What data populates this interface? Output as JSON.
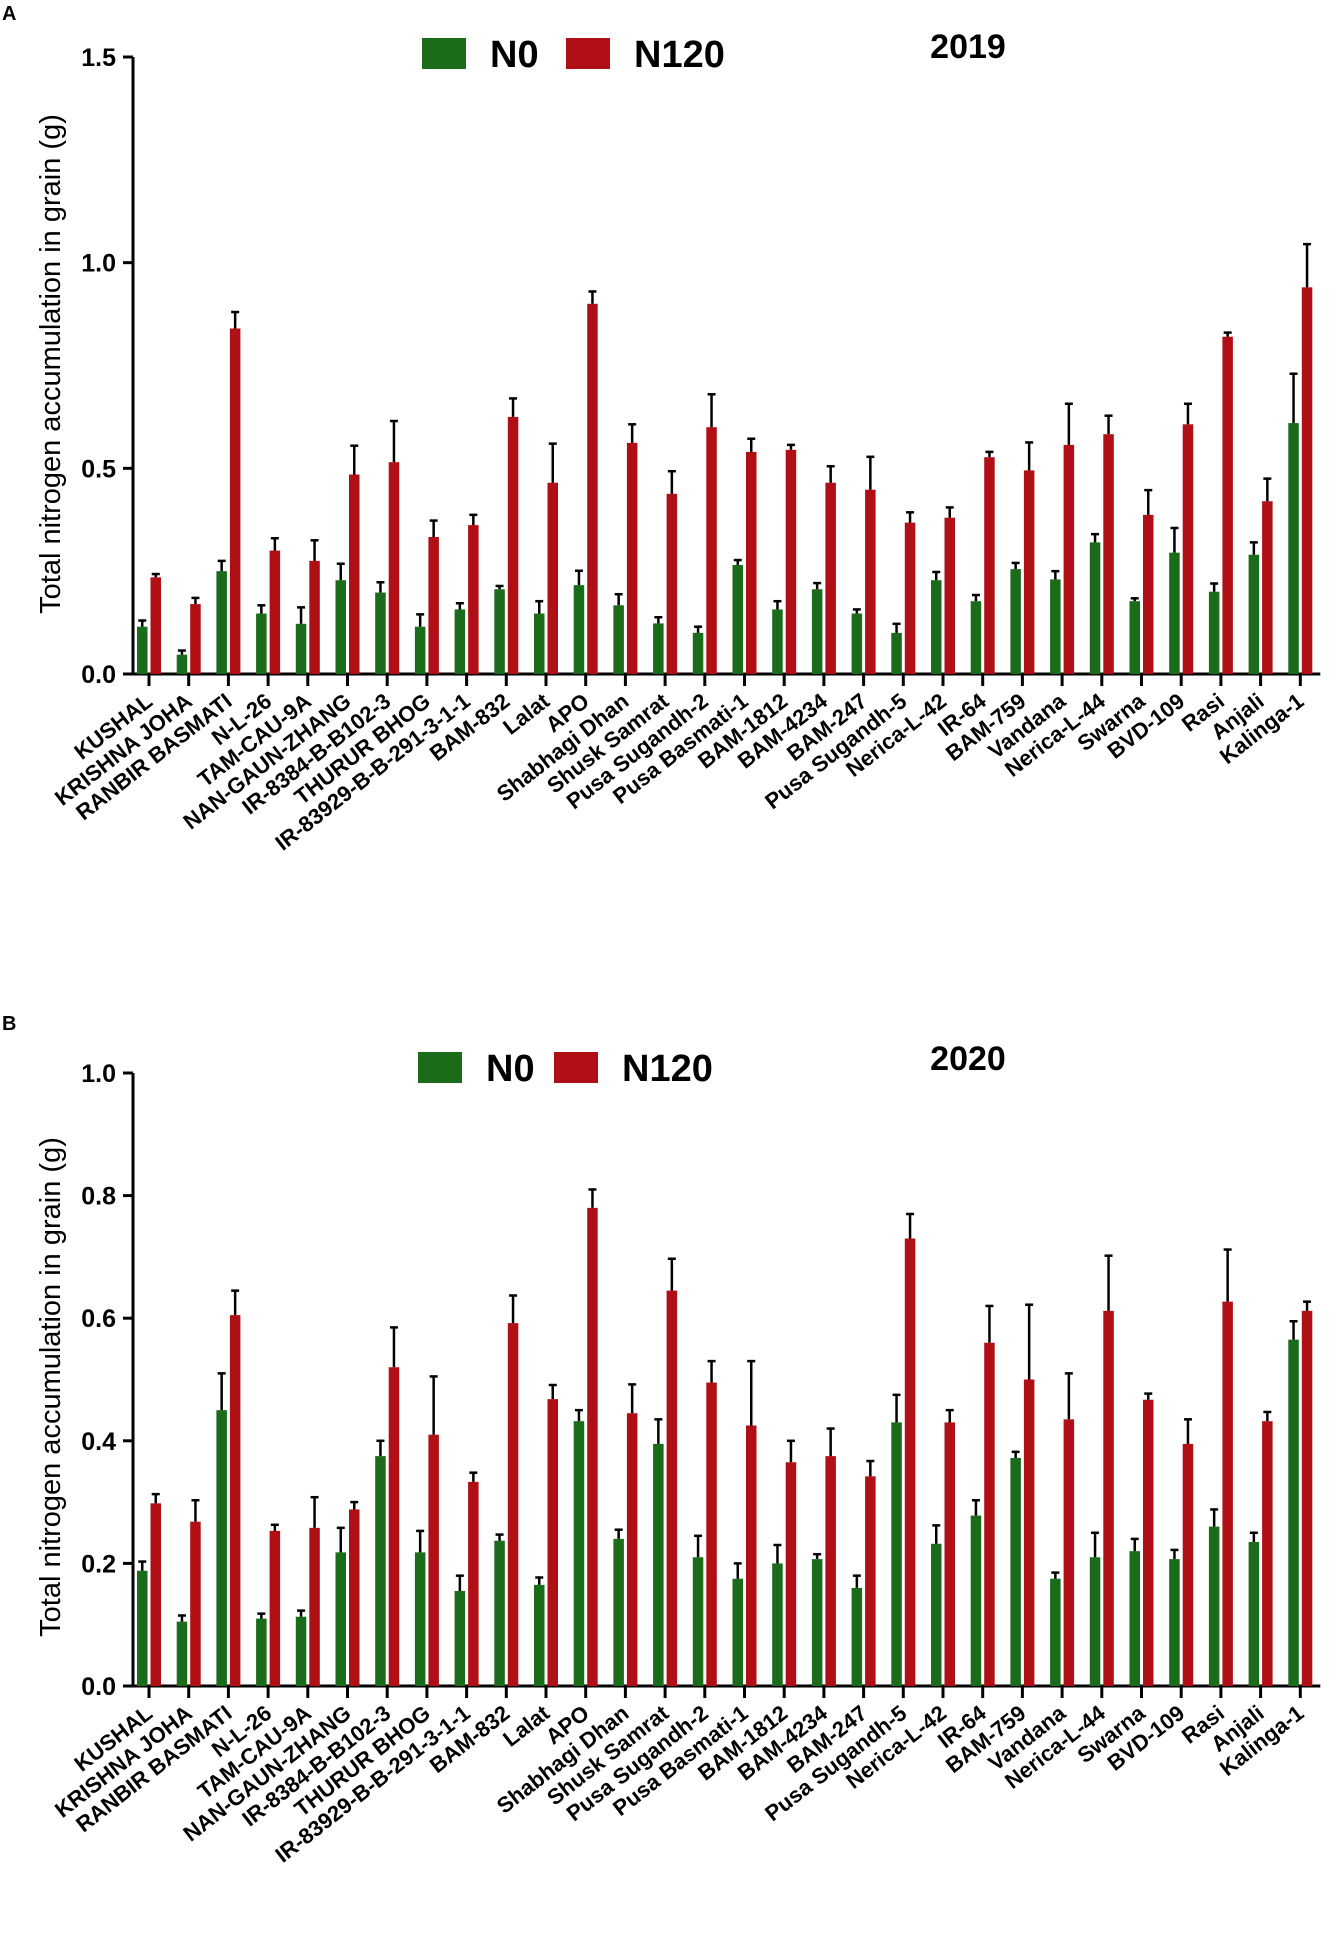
{
  "colors": {
    "n0": "#1a6b1a",
    "n120": "#b01015",
    "axis": "#000000",
    "errorbar": "#000000"
  },
  "chart_data": [
    {
      "type": "bar",
      "panel_label": "A",
      "title": "2019",
      "xlabel": "",
      "ylabel": "Total nitrogen accumulation in grain (g)",
      "ylim": [
        0,
        1.5
      ],
      "yticks": [
        "0.0",
        "0.5",
        "1.0",
        "1.5"
      ],
      "legend": [
        "N0",
        "N120"
      ],
      "legend_position": "top-center",
      "categories": [
        "KUSHAL",
        "KRISHNA JOHA",
        "RANBIR BASMATI",
        "N-L-26",
        "TAM-CAU-9A",
        "NAN-GAUN-ZHANG",
        "IR-8384-B-B102-3",
        "THURUR BHOG",
        "IR-83929-B-B-291-3-1-1",
        "BAM-832",
        "Lalat",
        "APO",
        "Shabhagi Dhan",
        "Shusk Samrat",
        "Pusa Sugandh-2",
        "Pusa Basmati-1",
        "BAM-1812",
        "BAM-4234",
        "BAM-247",
        "Pusa Sugandh-5",
        "Nerica-L-42",
        "IR-64",
        "BAM-759",
        "Vandana",
        "Nerica-L-44",
        "Swarna",
        "BVD-109",
        "Rasi",
        "Anjali",
        "Kalinga-1"
      ],
      "series": [
        {
          "name": "N0",
          "values": [
            0.115,
            0.047,
            0.25,
            0.147,
            0.122,
            0.228,
            0.198,
            0.115,
            0.157,
            0.206,
            0.147,
            0.216,
            0.167,
            0.123,
            0.1,
            0.265,
            0.157,
            0.206,
            0.147,
            0.1,
            0.228,
            0.177,
            0.255,
            0.23,
            0.32,
            0.177,
            0.295,
            0.2,
            0.29,
            0.61
          ],
          "errors": [
            0.015,
            0.01,
            0.025,
            0.02,
            0.04,
            0.04,
            0.025,
            0.03,
            0.015,
            0.008,
            0.03,
            0.035,
            0.027,
            0.015,
            0.015,
            0.012,
            0.02,
            0.015,
            0.01,
            0.022,
            0.02,
            0.015,
            0.015,
            0.02,
            0.02,
            0.007,
            0.06,
            0.02,
            0.03,
            0.12
          ]
        },
        {
          "name": "N120",
          "values": [
            0.235,
            0.17,
            0.84,
            0.3,
            0.275,
            0.485,
            0.515,
            0.333,
            0.362,
            0.625,
            0.465,
            0.9,
            0.562,
            0.438,
            0.6,
            0.54,
            0.545,
            0.465,
            0.448,
            0.368,
            0.38,
            0.527,
            0.495,
            0.557,
            0.583,
            0.387,
            0.607,
            0.82,
            0.42,
            0.94
          ],
          "errors": [
            0.008,
            0.015,
            0.04,
            0.03,
            0.05,
            0.07,
            0.1,
            0.04,
            0.025,
            0.045,
            0.095,
            0.03,
            0.045,
            0.055,
            0.08,
            0.032,
            0.012,
            0.04,
            0.08,
            0.025,
            0.025,
            0.013,
            0.068,
            0.1,
            0.045,
            0.06,
            0.05,
            0.01,
            0.055,
            0.105
          ]
        }
      ]
    },
    {
      "type": "bar",
      "panel_label": "B",
      "title": "2020",
      "xlabel": "",
      "ylabel": "Total nitrogen accumulation in grain (g)",
      "ylim": [
        0,
        1.0
      ],
      "yticks": [
        "0.0",
        "0.2",
        "0.4",
        "0.6",
        "0.8",
        "1.0"
      ],
      "legend": [
        "N0",
        "N120"
      ],
      "legend_position": "top-center",
      "categories": [
        "KUSHAL",
        "KRISHNA JOHA",
        "RANBIR BASMATI",
        "N-L-26",
        "TAM-CAU-9A",
        "NAN-GAUN-ZHANG",
        "IR-8384-B-B102-3",
        "THURUR BHOG",
        "IR-83929-B-B-291-3-1-1",
        "BAM-832",
        "Lalat",
        "APO",
        "Shabhagi Dhan",
        "Shusk Samrat",
        "Pusa Sugandh-2",
        "Pusa Basmati-1",
        "BAM-1812",
        "BAM-4234",
        "BAM-247",
        "Pusa Sugandh-5",
        "Nerica-L-42",
        "IR-64",
        "BAM-759",
        "Vandana",
        "Nerica-L-44",
        "Swarna",
        "BVD-109",
        "Rasi",
        "Anjali",
        "Kalinga-1"
      ],
      "series": [
        {
          "name": "N0",
          "values": [
            0.188,
            0.105,
            0.45,
            0.11,
            0.113,
            0.218,
            0.375,
            0.218,
            0.155,
            0.237,
            0.165,
            0.432,
            0.24,
            0.395,
            0.21,
            0.175,
            0.2,
            0.207,
            0.16,
            0.43,
            0.232,
            0.278,
            0.372,
            0.175,
            0.21,
            0.22,
            0.207,
            0.26,
            0.235,
            0.565
          ],
          "errors": [
            0.015,
            0.01,
            0.06,
            0.008,
            0.01,
            0.04,
            0.025,
            0.035,
            0.025,
            0.01,
            0.012,
            0.018,
            0.015,
            0.04,
            0.035,
            0.025,
            0.03,
            0.008,
            0.02,
            0.045,
            0.03,
            0.025,
            0.01,
            0.01,
            0.04,
            0.02,
            0.015,
            0.028,
            0.015,
            0.03
          ]
        },
        {
          "name": "N120",
          "values": [
            0.298,
            0.268,
            0.605,
            0.253,
            0.258,
            0.288,
            0.52,
            0.41,
            0.333,
            0.592,
            0.468,
            0.78,
            0.445,
            0.645,
            0.495,
            0.425,
            0.365,
            0.375,
            0.342,
            0.73,
            0.43,
            0.56,
            0.5,
            0.435,
            0.612,
            0.467,
            0.395,
            0.627,
            0.432,
            0.612
          ],
          "errors": [
            0.015,
            0.035,
            0.04,
            0.01,
            0.05,
            0.012,
            0.065,
            0.095,
            0.015,
            0.045,
            0.023,
            0.03,
            0.047,
            0.052,
            0.035,
            0.105,
            0.035,
            0.045,
            0.025,
            0.04,
            0.02,
            0.06,
            0.122,
            0.075,
            0.09,
            0.01,
            0.04,
            0.085,
            0.015,
            0.015
          ]
        }
      ]
    }
  ]
}
